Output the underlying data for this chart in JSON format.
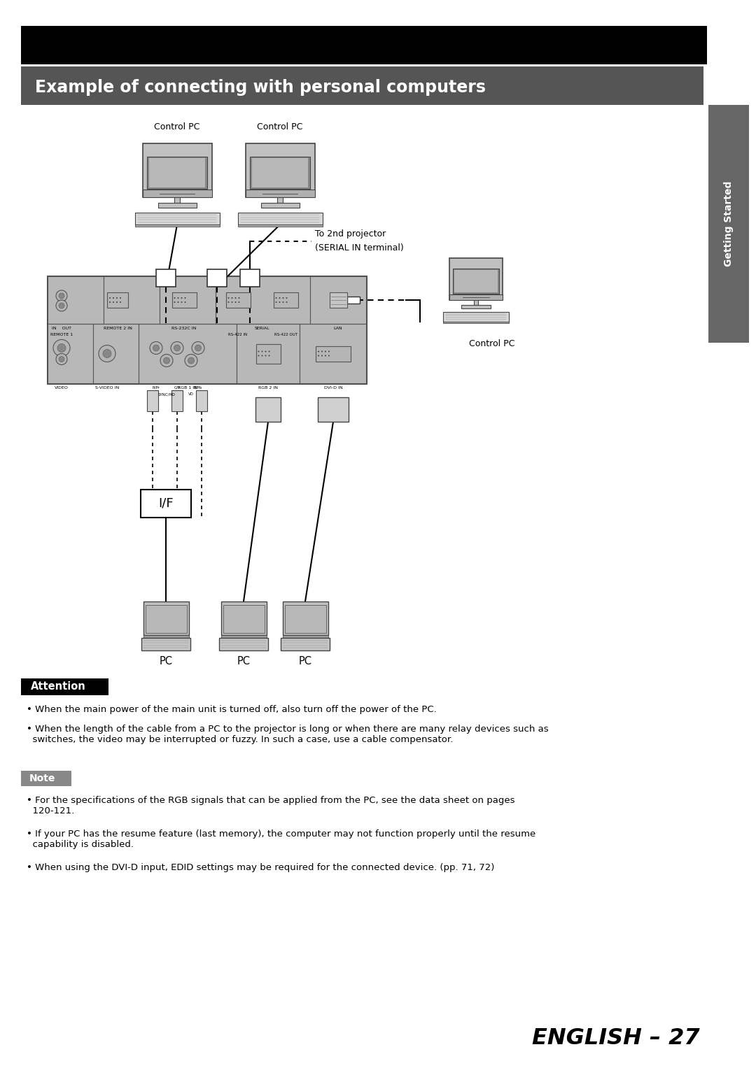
{
  "page_bg": "#ffffff",
  "top_bar_color": "#000000",
  "section_title": "Example of connecting with personal computers",
  "section_title_bg": "#555555",
  "section_title_color": "#ffffff",
  "side_tab_text": "Getting Started",
  "side_tab_bg": "#666666",
  "attention_label": "Attention",
  "attention_bg": "#000000",
  "attention_color": "#ffffff",
  "note_label": "Note",
  "note_bg": "#888888",
  "note_color": "#ffffff",
  "attention_bullets": [
    "When the main power of the main unit is turned off, also turn off the power of the PC.",
    "When the length of the cable from a PC to the projector is long or when there are many relay devices such as\n  switches, the video may be interrupted or fuzzy. In such a case, use a cable compensator."
  ],
  "note_bullets": [
    "For the specifications of the RGB signals that can be applied from the PC, see the data sheet on pages\n  120-121.",
    "If your PC has the resume feature (last memory), the computer may not function properly until the resume\n  capability is disabled.",
    "When using the DVI-D input, EDID settings may be required for the connected device. (pp. 71, 72)"
  ],
  "page_number": "ENGLISH – 27",
  "ctrl_pc1_label": "Control PC",
  "ctrl_pc2_label": "Control PC",
  "ctrl_pc3_label": "Control PC",
  "dashed_label_line1": "To 2nd projector",
  "dashed_label_line2": "(SERIAL IN terminal)",
  "if_label": "I/F",
  "pc_labels": [
    "PC",
    "PC",
    "PC"
  ]
}
